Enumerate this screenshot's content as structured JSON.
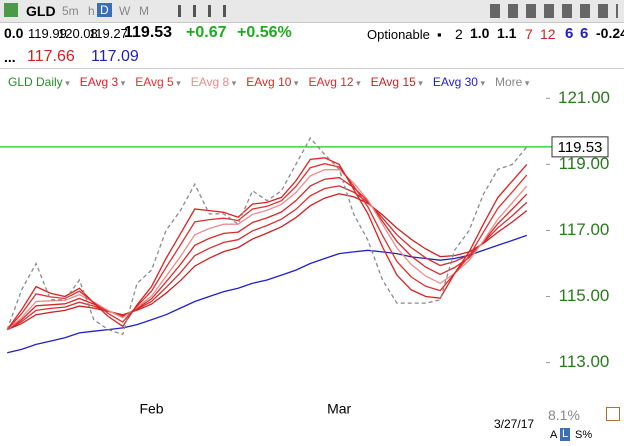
{
  "toolbar": {
    "symbol": "GLD",
    "intervals": [
      "5m",
      "h",
      "D",
      "W",
      "M"
    ]
  },
  "quote": {
    "items": [
      "0.0",
      "119.99",
      "120.08",
      "119.27",
      "119.53",
      "+0.67",
      "+0.56%",
      "Optionable",
      "2",
      "1.0",
      "1.1",
      "7",
      "12",
      "6",
      "6",
      "-0.24"
    ],
    "row2": [
      "...",
      "117.66",
      "117.09"
    ]
  },
  "chart_data": {
    "type": "line",
    "categories": [
      null,
      null,
      null,
      null,
      null,
      null,
      null,
      null,
      null,
      null,
      "Feb",
      null,
      null,
      null,
      null,
      null,
      null,
      null,
      null,
      null,
      null,
      null,
      null,
      "Mar",
      null,
      null,
      null,
      null,
      null,
      null,
      null,
      null,
      null,
      null,
      null,
      null,
      null
    ],
    "series": [
      {
        "name": "GLD Daily",
        "color": "#8a8a8a",
        "style": "dashed",
        "values": [
          114.0,
          115.2,
          116.0,
          114.9,
          114.9,
          115.5,
          114.3,
          114.0,
          113.85,
          115.4,
          115.8,
          117.0,
          117.6,
          118.4,
          117.5,
          117.5,
          117.2,
          118.2,
          117.9,
          118.2,
          119.0,
          119.8,
          119.3,
          118.85,
          117.5,
          116.7,
          115.5,
          114.8,
          114.8,
          114.8,
          114.9,
          116.4,
          117.0,
          118.1,
          118.85,
          119.0,
          119.53
        ]
      },
      {
        "name": "EAvg 3",
        "color": "#e02020",
        "values": [
          114.0,
          114.6,
          115.3,
          115.1,
          115.0,
          115.25,
          114.8,
          114.4,
          114.1,
          114.75,
          115.3,
          116.15,
          116.9,
          117.65,
          117.6,
          117.55,
          117.4,
          117.8,
          117.85,
          118.0,
          118.5,
          119.15,
          119.2,
          119.0,
          118.25,
          117.5,
          116.5,
          115.65,
          115.2,
          115.0,
          114.95,
          115.7,
          116.35,
          117.2,
          118.0,
          118.5,
          119.0
        ]
      },
      {
        "name": "EAvg 5",
        "color": "#e03030",
        "values": [
          114.0,
          114.48,
          115.08,
          114.99,
          114.94,
          115.16,
          114.82,
          114.49,
          114.23,
          114.71,
          115.16,
          115.88,
          116.56,
          117.26,
          117.33,
          117.37,
          117.3,
          117.65,
          117.73,
          117.9,
          118.33,
          118.9,
          119.02,
          118.92,
          118.35,
          117.71,
          116.85,
          116.06,
          115.59,
          115.31,
          115.18,
          115.7,
          116.22,
          116.95,
          117.67,
          118.17,
          118.68
        ]
      },
      {
        "name": "EAvg 8",
        "color": "#ec8c8c",
        "values": [
          114.0,
          114.36,
          114.85,
          114.87,
          114.88,
          115.06,
          114.83,
          114.58,
          114.36,
          114.67,
          115.01,
          115.61,
          116.21,
          116.87,
          117.06,
          117.19,
          117.19,
          117.49,
          117.61,
          117.79,
          118.15,
          118.65,
          118.84,
          118.84,
          118.44,
          117.92,
          117.19,
          116.47,
          115.97,
          115.62,
          115.4,
          115.7,
          116.09,
          116.69,
          117.34,
          117.84,
          118.35
        ]
      },
      {
        "name": "EAvg 10",
        "color": "#d82828",
        "values": [
          114.0,
          114.3,
          114.72,
          114.75,
          114.78,
          114.94,
          114.77,
          114.57,
          114.39,
          114.64,
          114.93,
          115.44,
          115.97,
          116.55,
          116.76,
          116.91,
          116.95,
          117.24,
          117.38,
          117.56,
          117.9,
          118.35,
          118.55,
          118.6,
          118.3,
          117.89,
          117.28,
          116.67,
          116.22,
          115.89,
          115.67,
          115.88,
          116.18,
          116.66,
          117.21,
          117.65,
          118.1
        ]
      },
      {
        "name": "EAvg 12",
        "color": "#d43030",
        "values": [
          114.0,
          114.24,
          114.58,
          114.64,
          114.68,
          114.83,
          114.71,
          114.56,
          114.42,
          114.62,
          114.85,
          115.27,
          115.72,
          116.24,
          116.46,
          116.64,
          116.72,
          116.99,
          117.15,
          117.34,
          117.64,
          118.05,
          118.27,
          118.35,
          118.16,
          117.85,
          117.38,
          116.87,
          116.48,
          116.17,
          115.94,
          116.06,
          116.26,
          116.64,
          117.08,
          117.45,
          117.85
        ]
      },
      {
        "name": "EAvg 15",
        "color": "#cc2020",
        "values": [
          114.0,
          114.18,
          114.45,
          114.52,
          114.58,
          114.71,
          114.65,
          114.55,
          114.45,
          114.59,
          114.77,
          115.1,
          115.48,
          115.92,
          116.16,
          116.36,
          116.48,
          116.74,
          116.92,
          117.11,
          117.39,
          117.75,
          117.98,
          118.11,
          118.02,
          117.82,
          117.47,
          117.07,
          116.73,
          116.44,
          116.21,
          116.24,
          116.35,
          116.61,
          116.95,
          117.26,
          117.6
        ]
      },
      {
        "name": "EAvg 30",
        "color": "#2020c8",
        "values": [
          113.3,
          113.4,
          113.55,
          113.65,
          113.75,
          113.9,
          113.95,
          114.0,
          114.05,
          114.15,
          114.3,
          114.45,
          114.65,
          114.85,
          115.0,
          115.15,
          115.25,
          115.4,
          115.5,
          115.65,
          115.8,
          116.0,
          116.15,
          116.3,
          116.35,
          116.4,
          116.35,
          116.3,
          116.2,
          116.15,
          116.1,
          116.15,
          116.25,
          116.4,
          116.55,
          116.7,
          116.85
        ]
      }
    ],
    "more": "More",
    "last_price": 119.53,
    "last_price_color": "#33dd33",
    "ylim": [
      112.05,
      121.1
    ],
    "yticks": [
      {
        "value": 113,
        "label": "113.00"
      },
      {
        "value": 115,
        "label": "115.00"
      },
      {
        "value": 117,
        "label": "117.00"
      },
      {
        "value": 119,
        "label": "119.00"
      },
      {
        "value": 121,
        "label": "121.00"
      }
    ],
    "grid": false
  },
  "footer": {
    "date": "3/27/17",
    "percent": "8.1%",
    "buttons": [
      "A",
      "L",
      "S%"
    ]
  }
}
